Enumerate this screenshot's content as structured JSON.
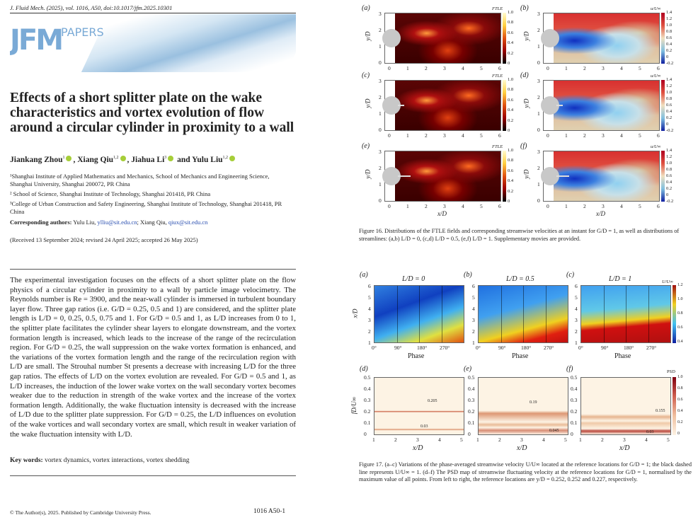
{
  "header": {
    "journal_line": "J. Fluid Mech. (2025), vol. 1016, A50, doi:10.1017/jfm.2025.10301"
  },
  "logo": {
    "mark": "JFM",
    "papers": "PAPERS"
  },
  "paper": {
    "title": "Effects of a short splitter plate on the wake characteristics and vortex evolution of flow around a circular cylinder in proximity to a wall",
    "authors": [
      {
        "name": "Jiankang Zhou",
        "sup": "1",
        "sep": ", "
      },
      {
        "name": "Xiang Qiu",
        "sup": "1,2",
        "sep": ", "
      },
      {
        "name": "Jiahua Li",
        "sup": "3",
        "sep": " and "
      },
      {
        "name": "Yulu Liu",
        "sup": "1,2",
        "sep": ""
      }
    ],
    "affiliations": [
      "¹Shanghai Institute of Applied Mathematics and Mechanics, School of Mechanics and Engineering Science, Shanghai University, Shanghai 200072, PR China",
      "² School of Science, Shanghai Institute of Technology, Shanghai 201418, PR China",
      "³College of Urban Construction and Safety Engineering, Shanghai Institute of Technology, Shanghai 201418, PR China"
    ],
    "corresponding_label": "Corresponding authors:",
    "corresponding_1": " Yulu Liu, ",
    "email_1": "ylliu@sit.edu.cn",
    "corresponding_2": "; Xiang Qiu, ",
    "email_2": "qiux@sit.edu.cn",
    "received": "(Received 13 September 2024; revised 24 April 2025; accepted 26 May 2025)",
    "abstract": "The experimental investigation focuses on the effects of a short splitter plate on the flow physics of a circular cylinder in proximity to a wall by particle image velocimetry. The Reynolds number is Re = 3900, and the near-wall cylinder is immersed in turbulent boundary layer flow. Three gap ratios (i.e. G/D = 0.25, 0.5 and 1) are considered, and the splitter plate length is L/D = 0, 0.25, 0.5, 0.75 and 1. For G/D = 0.5 and 1, as L/D increases from 0 to 1, the splitter plate facilitates the cylinder shear layers to elongate downstream, and the vortex formation length is increased, which leads to the increase of the range of the recirculation region. For G/D = 0.25, the wall suppression on the wake vortex formation is enhanced, and the variations of the vortex formation length and the range of the recirculation region with L/D are small. The Strouhal number St presents a decrease with increasing L/D for the three gap ratios. The effects of L/D on the vortex evolution are revealed. For G/D = 0.5 and 1, as L/D increases, the induction of the lower wake vortex on the wall secondary vortex becomes weaker due to the reduction in strength of the wake vortex and the increase of the vortex formation length. Additionally, the wake fluctuation intensity is decreased with the increase of L/D due to the splitter plate suppression. For G/D = 0.25, the L/D influences on evolution of the wake vortices and wall secondary vortex are small, which result in weaker variation of the wake fluctuation intensity with L/D.",
    "keywords_label": "Key words:",
    "keywords": " vortex dynamics, vortex interactions, vortex shedding"
  },
  "footer": {
    "copyright": "© The Author(s), 2025. Published by Cambridge University Press.",
    "page": "1016 A50-1"
  },
  "figure16": {
    "panel_labels": [
      "(a)",
      "(b)",
      "(c)",
      "(d)",
      "(e)",
      "(f)"
    ],
    "x_ticks": [
      "0",
      "1",
      "2",
      "3",
      "4",
      "5",
      "6"
    ],
    "y_ticks": [
      "0",
      "1",
      "2",
      "3"
    ],
    "x_label": "x/D",
    "y_label": "y/D",
    "ftle_title": "FTLE",
    "ftle_ticks": [
      "1.0",
      "0.8",
      "0.6",
      "0.4",
      "0.2",
      "0"
    ],
    "vel_title": "u/U∞",
    "vel_ticks": [
      "1.4",
      "1.2",
      "1.0",
      "0.8",
      "0.6",
      "0.4",
      "0.2",
      "0",
      "-0.2"
    ],
    "caption": "Figure 16. Distributions of the FTLE fields and corresponding streamwise velocities at an instant for G/D = 1, as well as distributions of streamlines: (a,b) L/D = 0, (c,d) L/D = 0.5, (e,f) L/D = 1. Supplementary movies are provided."
  },
  "figure17": {
    "panel_labels": [
      "(a)",
      "(b)",
      "(c)",
      "(d)",
      "(e)",
      "(f)"
    ],
    "titles": [
      "L/D = 0",
      "L/D = 0.5",
      "L/D = 1"
    ],
    "phase_ticks": [
      "0°",
      "90°",
      "180°",
      "270°"
    ],
    "xd_ticks": [
      "1",
      "2",
      "3",
      "4",
      "5",
      "6"
    ],
    "phase_label": "Phase",
    "xd_label": "x/D",
    "u_title": "U/U∞",
    "u_ticks": [
      "1.2",
      "1.0",
      "0.8",
      "0.6",
      "0.4"
    ],
    "f_ticks": [
      "0.5",
      "0.4",
      "0.3",
      "0.2",
      "0.1",
      "0"
    ],
    "f_label": "fD/U∞",
    "x_ticks": [
      "1",
      "2",
      "3",
      "4",
      "5"
    ],
    "psd_title": "PSD",
    "psd_ticks": [
      "1.0",
      "0.8",
      "0.6",
      "0.4",
      "0.2",
      "0"
    ],
    "annotations": [
      [
        "0.205",
        "0.03"
      ],
      [
        "0.19",
        "0.045"
      ],
      [
        "0.155",
        "0.03"
      ]
    ],
    "caption": "Figure 17. (a–c) Variations of the phase-averaged streamwise velocity U/U∞ located at the reference locations for G/D = 1; the black dashed line represents U/U∞ = 1. (d–f) The PSD map of streamwise fluctuating velocity at the reference locations for G/D = 1, normalised by the maximum value of all points. From left to right, the reference locations are y/D = 0.252, 0.252 and 0.227, respectively."
  }
}
